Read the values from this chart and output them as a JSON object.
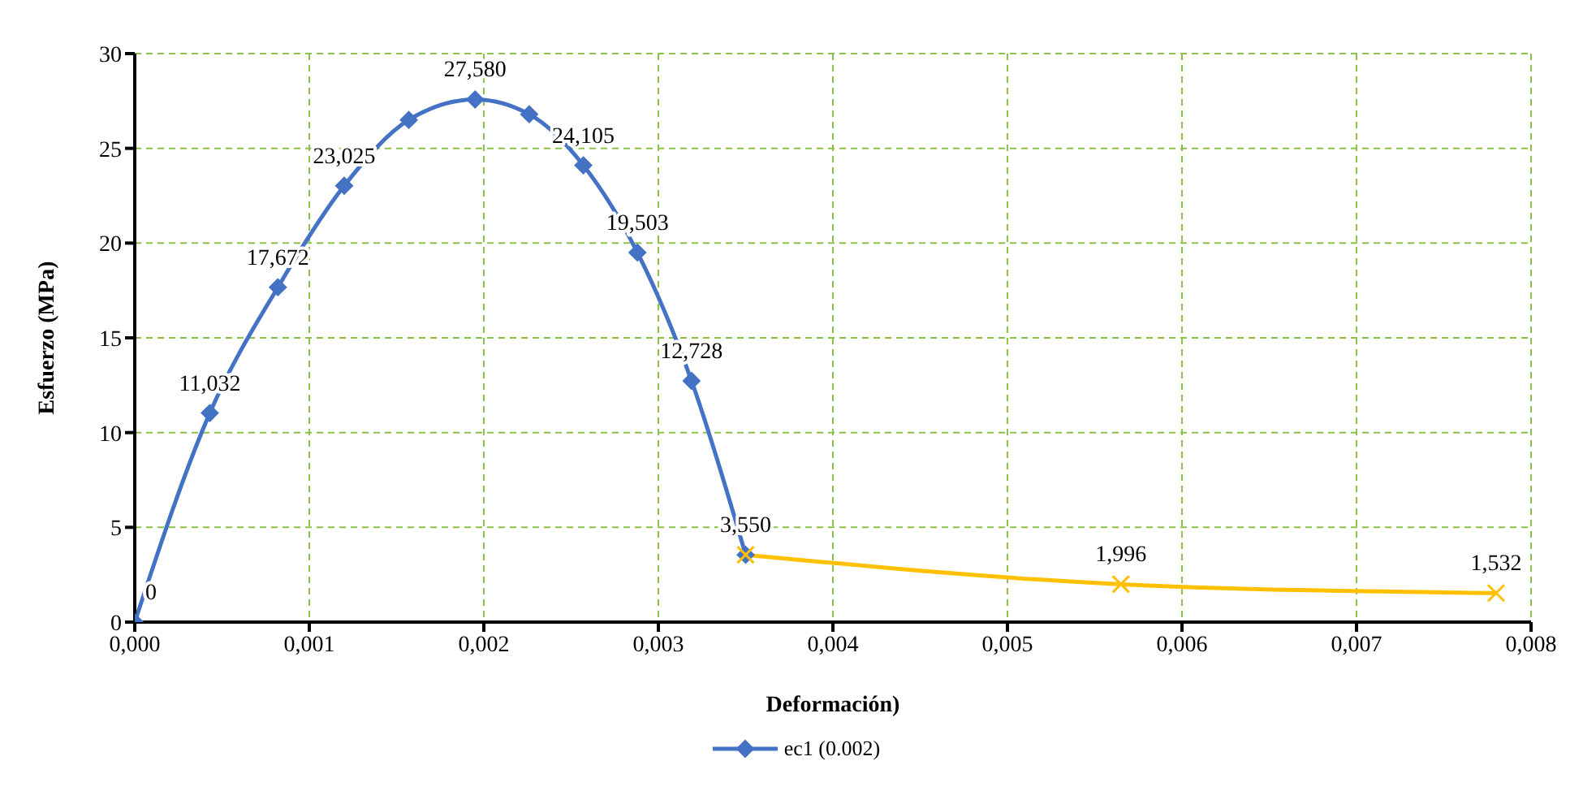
{
  "chart_data": {
    "type": "line",
    "xlabel": "Deformación)",
    "ylabel": "Esfuerzo (MPa)",
    "xlim": [
      0,
      0.008
    ],
    "xticks": [
      {
        "value": 0,
        "label": "0,000"
      },
      {
        "value": 0.001,
        "label": "0,001"
      },
      {
        "value": 0.002,
        "label": "0,002"
      },
      {
        "value": 0.003,
        "label": "0,003"
      },
      {
        "value": 0.004,
        "label": "0,004"
      },
      {
        "value": 0.005,
        "label": "0,005"
      },
      {
        "value": 0.006,
        "label": "0,006"
      },
      {
        "value": 0.007,
        "label": "0,007"
      },
      {
        "value": 0.008,
        "label": "0,008"
      }
    ],
    "ylim": [
      0,
      30
    ],
    "yticks": [
      0,
      5,
      10,
      15,
      20,
      25,
      30
    ],
    "grid": true,
    "legend": "bottom",
    "series": [
      {
        "name": "ec1 (0.002)",
        "color": "#4472c4",
        "marker": "diamond",
        "x": [
          0,
          0.00043,
          0.00082,
          0.0012,
          0.00157,
          0.00195,
          0.00226,
          0.00257,
          0.00288,
          0.00319,
          0.0035
        ],
        "values": [
          0,
          11.032,
          17.672,
          23.025,
          26.5,
          27.58,
          26.8,
          24.105,
          19.503,
          12.728,
          3.55
        ],
        "value_labels": [
          "0",
          "11,032",
          "17,672",
          "23,025",
          null,
          "27,580",
          null,
          "24,105",
          "19,503",
          "12,728",
          "3,550"
        ]
      },
      {
        "color": "#ffc000",
        "marker": "cross",
        "x": [
          0.0035,
          0.00565,
          0.0078
        ],
        "values": [
          3.55,
          1.996,
          1.532
        ],
        "value_labels": [
          null,
          "1,996",
          "1,532"
        ]
      }
    ]
  }
}
